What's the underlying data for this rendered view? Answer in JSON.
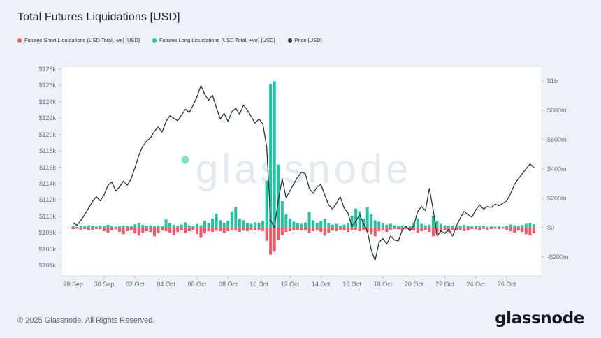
{
  "header": {
    "title": "Total Futures Liquidations [USD]"
  },
  "legend": {
    "items": [
      {
        "label": "Futures Short Liquidations (USD Total, -ve) [USD]",
        "color": "#f25767"
      },
      {
        "label": "Futures Long Liquidations (USD Total, +ve) [USD]",
        "color": "#22c4a0"
      },
      {
        "label": "Price [USD]",
        "color": "#2b3540"
      }
    ]
  },
  "watermark": {
    "text": "glassnode",
    "dot_color": "#22c4a0",
    "text_color": "#e2e9f1"
  },
  "footer": {
    "copyright": "© 2025 Glassnode. All Rights Reserved.",
    "brand": "glassnode"
  },
  "colors": {
    "background": "#eef1f5",
    "plot_background": "#ffffff",
    "plot_border": "#dce1e8",
    "zero_line": "#e6e9ed",
    "tick": "#b9c2cc",
    "short_bars": "#f25767",
    "long_bars": "#22c4a0",
    "price_line": "#2b3540"
  },
  "chart_data": {
    "type": "mixed",
    "title": "Total Futures Liquidations [USD]",
    "x": {
      "start": "28 Sep",
      "end": "27 Oct",
      "interval_hours": 6,
      "points": 120
    },
    "x_ticks": [
      "28 Sep",
      "30 Sep",
      "02 Oct",
      "04 Oct",
      "06 Oct",
      "08 Oct",
      "10 Oct",
      "12 Oct",
      "14 Oct",
      "16 Oct",
      "18 Oct",
      "20 Oct",
      "22 Oct",
      "24 Oct",
      "26 Oct"
    ],
    "left_axis": {
      "unit": "USD (thousands)",
      "values": [
        128,
        126,
        124,
        122,
        120,
        118,
        116,
        114,
        112,
        110,
        108,
        106,
        104
      ],
      "labels": [
        "$128k",
        "$126k",
        "$124k",
        "$122k",
        "$120k",
        "$118k",
        "$116k",
        "$114k",
        "$112k",
        "$110k",
        "$108k",
        "$106k",
        "$104k"
      ]
    },
    "right_axis": {
      "unit": "USD (millions)",
      "values": [
        1000,
        800,
        600,
        400,
        200,
        0,
        -200
      ],
      "labels": [
        "$1b",
        "$800m",
        "$600m",
        "$400m",
        "$200m",
        "$0",
        "-$200m"
      ]
    },
    "series": [
      {
        "name": "Futures Short Liquidations (USD Total, -ve) [USD]",
        "type": "bar",
        "axis": "right",
        "unit": "USD millions",
        "color": "#f25767",
        "values": [
          -12,
          -8,
          -15,
          -10,
          -20,
          -15,
          -10,
          -12,
          -25,
          -35,
          -18,
          -12,
          -30,
          -45,
          -25,
          -20,
          -40,
          -55,
          -35,
          -25,
          -30,
          -60,
          -40,
          -20,
          -25,
          -35,
          -50,
          -30,
          -20,
          -40,
          -25,
          -15,
          -45,
          -70,
          -40,
          -25,
          -30,
          -20,
          -25,
          -35,
          -25,
          -15,
          -20,
          -30,
          -20,
          -25,
          -15,
          -20,
          -15,
          -25,
          -90,
          -185,
          -165,
          -85,
          -50,
          -30,
          -25,
          -20,
          -15,
          -20,
          -20,
          -35,
          -25,
          -15,
          -30,
          -55,
          -35,
          -20,
          -25,
          -15,
          -20,
          -30,
          -20,
          -15,
          -25,
          -15,
          -30,
          -45,
          -60,
          -25,
          -20,
          -30,
          -15,
          -10,
          -12,
          -18,
          -10,
          -15,
          -20,
          -35,
          -25,
          -15,
          -30,
          -60,
          -45,
          -25,
          -20,
          -30,
          -15,
          -20,
          -15,
          -25,
          -20,
          -10,
          -12,
          -18,
          -10,
          -15,
          -10,
          -8,
          -12,
          -8,
          -15,
          -25,
          -35,
          -20,
          -30,
          -45,
          -55,
          -40
        ]
      },
      {
        "name": "Futures Long Liquidations (USD Total, +ve) [USD]",
        "type": "bar",
        "axis": "right",
        "unit": "USD millions",
        "color": "#22c4a0",
        "values": [
          8,
          5,
          12,
          9,
          15,
          10,
          7,
          12,
          10,
          18,
          8,
          6,
          9,
          14,
          11,
          8,
          22,
          30,
          18,
          12,
          15,
          10,
          12,
          9,
          55,
          30,
          18,
          12,
          20,
          35,
          15,
          10,
          25,
          15,
          45,
          30,
          60,
          95,
          50,
          30,
          45,
          110,
          140,
          60,
          50,
          30,
          25,
          35,
          30,
          45,
          320,
          980,
          1000,
          430,
          180,
          90,
          60,
          40,
          30,
          25,
          35,
          105,
          50,
          30,
          45,
          60,
          30,
          20,
          25,
          15,
          20,
          30,
          80,
          130,
          110,
          60,
          140,
          90,
          50,
          40,
          30,
          20,
          25,
          15,
          10,
          15,
          12,
          8,
          35,
          60,
          25,
          15,
          20,
          80,
          45,
          25,
          15,
          10,
          12,
          8,
          12,
          18,
          10,
          8,
          10,
          8,
          12,
          6,
          8,
          6,
          10,
          5,
          12,
          20,
          15,
          10,
          18,
          25,
          30,
          22
        ]
      },
      {
        "name": "Price [USD]",
        "type": "line",
        "axis": "left",
        "unit": "USD thousands",
        "color": "#2b3540",
        "values": [
          109.2,
          108.9,
          109.5,
          110.2,
          111.0,
          111.8,
          112.4,
          111.9,
          112.6,
          113.8,
          114.2,
          113.1,
          113.6,
          114.3,
          113.8,
          114.6,
          116.0,
          117.5,
          118.6,
          119.2,
          119.6,
          120.4,
          120.9,
          120.3,
          121.6,
          122.3,
          122.0,
          121.7,
          122.4,
          123.1,
          122.7,
          123.6,
          124.6,
          126.0,
          124.9,
          124.2,
          124.8,
          123.3,
          121.9,
          122.6,
          121.6,
          122.8,
          123.2,
          122.5,
          123.6,
          123.0,
          122.2,
          121.4,
          121.9,
          121.3,
          118.5,
          109.5,
          108.6,
          112.0,
          114.6,
          112.3,
          113.1,
          114.0,
          114.8,
          115.4,
          115.2,
          113.4,
          112.8,
          113.6,
          113.9,
          112.6,
          111.4,
          110.9,
          111.6,
          112.4,
          111.0,
          110.4,
          108.7,
          109.4,
          110.2,
          109.1,
          108.2,
          105.9,
          104.6,
          106.8,
          107.3,
          106.6,
          107.6,
          107.1,
          107.0,
          108.3,
          108.8,
          108.2,
          108.9,
          110.6,
          111.2,
          110.7,
          113.4,
          110.8,
          107.6,
          108.2,
          107.9,
          108.4,
          107.6,
          108.8,
          109.8,
          110.6,
          110.2,
          109.9,
          110.8,
          111.4,
          110.9,
          111.2,
          111.1,
          111.5,
          111.3,
          111.6,
          111.9,
          112.8,
          113.9,
          114.6,
          115.2,
          115.8,
          116.4,
          116.0
        ]
      }
    ],
    "left_range_k": [
      104,
      128
    ],
    "right_range_m": [
      -200,
      1000
    ],
    "grid": false,
    "legend_position": "top-left"
  }
}
